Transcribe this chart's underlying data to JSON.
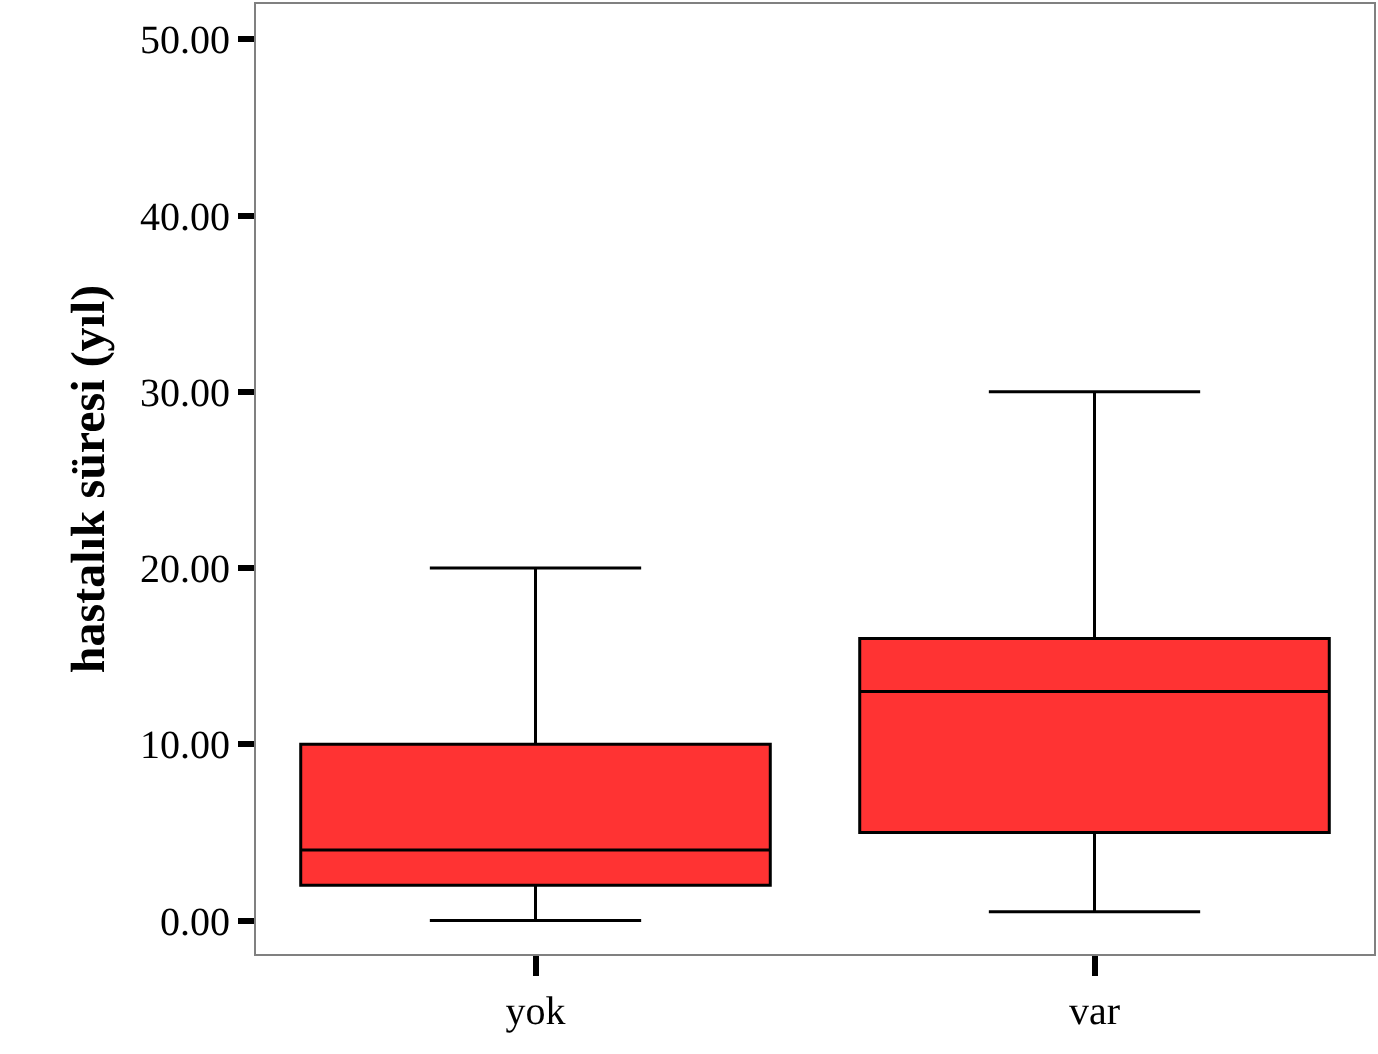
{
  "chart_data": {
    "type": "box",
    "ylabel": "hastalık süresi (yıl)",
    "categories": [
      "yok",
      "var"
    ],
    "boxes": [
      {
        "low": 0,
        "q1": 2,
        "median": 4,
        "q3": 10,
        "high": 20
      },
      {
        "low": 0.5,
        "q1": 5,
        "median": 13,
        "q3": 16,
        "high": 30
      }
    ],
    "color": "#ff3333",
    "ylim": [
      -1.9,
      52
    ],
    "yticks": [
      {
        "value": 0,
        "label": "0.00"
      },
      {
        "value": 10,
        "label": "10.00"
      },
      {
        "value": 20,
        "label": "20.00"
      },
      {
        "value": 30,
        "label": "30.00"
      },
      {
        "value": 40,
        "label": "40.00"
      },
      {
        "value": 50,
        "label": "50.00"
      }
    ],
    "grid": false
  }
}
